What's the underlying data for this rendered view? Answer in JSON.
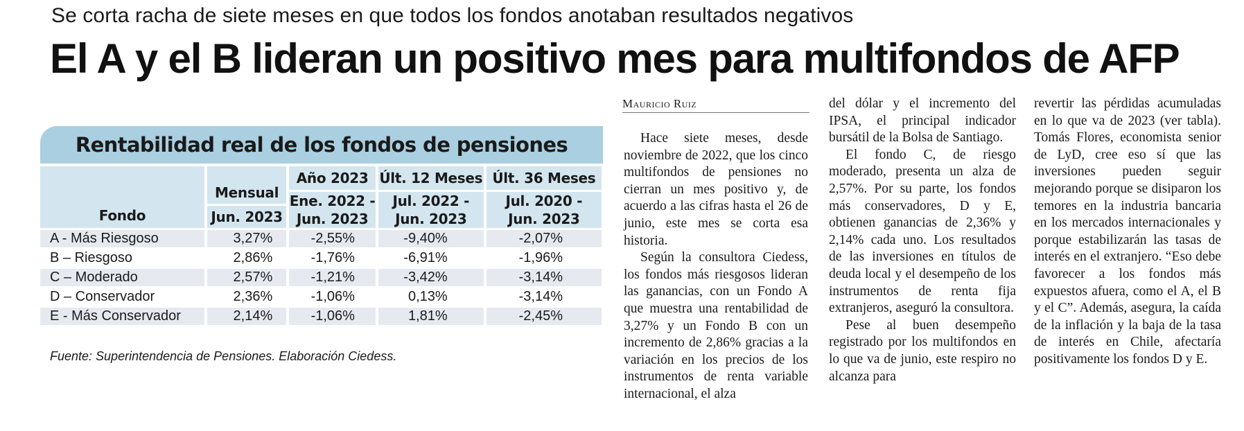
{
  "kicker": "Se corta racha de siete meses en que todos los fondos anotaban resultados negativos",
  "headline": "El A y el B lideran un positivo mes para multifondos de AFP",
  "table": {
    "title": "Rentabilidad real de los fondos de pensiones",
    "headers": {
      "fondo": "Fondo",
      "mensual": "Mensual",
      "mensual_period": "Jun. 2023",
      "anio": "Año 2023",
      "anio_period1": "Ene. 2022 -",
      "anio_period2": "Jun. 2023",
      "ult12": "Últ. 12 Meses",
      "ult12_period1": "Jul. 2022 -",
      "ult12_period2": "Jun. 2023",
      "ult36": "Últ. 36 Meses",
      "ult36_period1": "Jul. 2020 -",
      "ult36_period2": "Jun. 2023"
    },
    "rows": [
      {
        "fondo": "A - Más Riesgoso",
        "mensual": "3,27%",
        "anio": "-2,55%",
        "ult12": "-9,40%",
        "ult36": "-2,07%"
      },
      {
        "fondo": "B – Riesgoso",
        "mensual": "2,86%",
        "anio": "-1,76%",
        "ult12": "-6,91%",
        "ult36": "-1,96%"
      },
      {
        "fondo": "C – Moderado",
        "mensual": "2,57%",
        "anio": "-1,21%",
        "ult12": "-3,42%",
        "ult36": "-3,14%"
      },
      {
        "fondo": "D – Conservador",
        "mensual": "2,36%",
        "anio": "-1,06%",
        "ult12": "0,13%",
        "ult36": "-3,14%"
      },
      {
        "fondo": "E - Más Conservador",
        "mensual": "2,14%",
        "anio": "-1,06%",
        "ult12": "1,81%",
        "ult36": "-2,45%"
      }
    ],
    "source": "Fuente: Superintendencia de Pensiones. Elaboración Ciedess."
  },
  "byline": "Mauricio Ruiz",
  "article": {
    "col1": [
      "Hace siete meses, desde noviembre de 2022, que los cinco multifondos de pensiones no cierran un mes positivo y, de acuerdo a las cifras hasta el 26 de junio, este mes se corta esa historia.",
      "Según la consultora Ciedess, los fondos más riesgosos lideran las ganancias, con un Fondo A que muestra una rentabilidad de 3,27% y un Fondo B con un incremento de 2,86% gracias a la variación en los precios de los instrumentos de renta variable internacional, el alza"
    ],
    "col2": [
      "del dólar y el incremento del IPSA, el principal indicador bursátil de la Bolsa de Santiago.",
      "El fondo C, de riesgo moderado, presenta un alza de 2,57%. Por su parte, los fondos más conservadores, D y E, obtienen ganancias de 2,36% y 2,14% cada uno. Los resultados de las inversiones en títulos de deuda local y el desempeño de los instrumentos de renta fija extranjeros, aseguró la consultora.",
      "Pese al buen desempeño registrado por los multifondos en lo que va de junio, este respiro no alcanza para"
    ],
    "col3": [
      "revertir las pérdidas acumuladas en lo que va de 2023 (ver tabla). Tomás Flores, economista senior de LyD, cree eso sí que las inversiones pueden seguir mejorando porque se disiparon los temores en la industria bancaria en los mercados internacionales y porque estabilizarán las tasas de interés en el extranjero. “Eso debe favorecer a los fondos más expuestos afuera, como el A, el B y el C”. Además, asegura, la caída de la inflación y la baja de la tasa de interés en Chile, afectaría positivamente los fondos D y E."
    ]
  }
}
